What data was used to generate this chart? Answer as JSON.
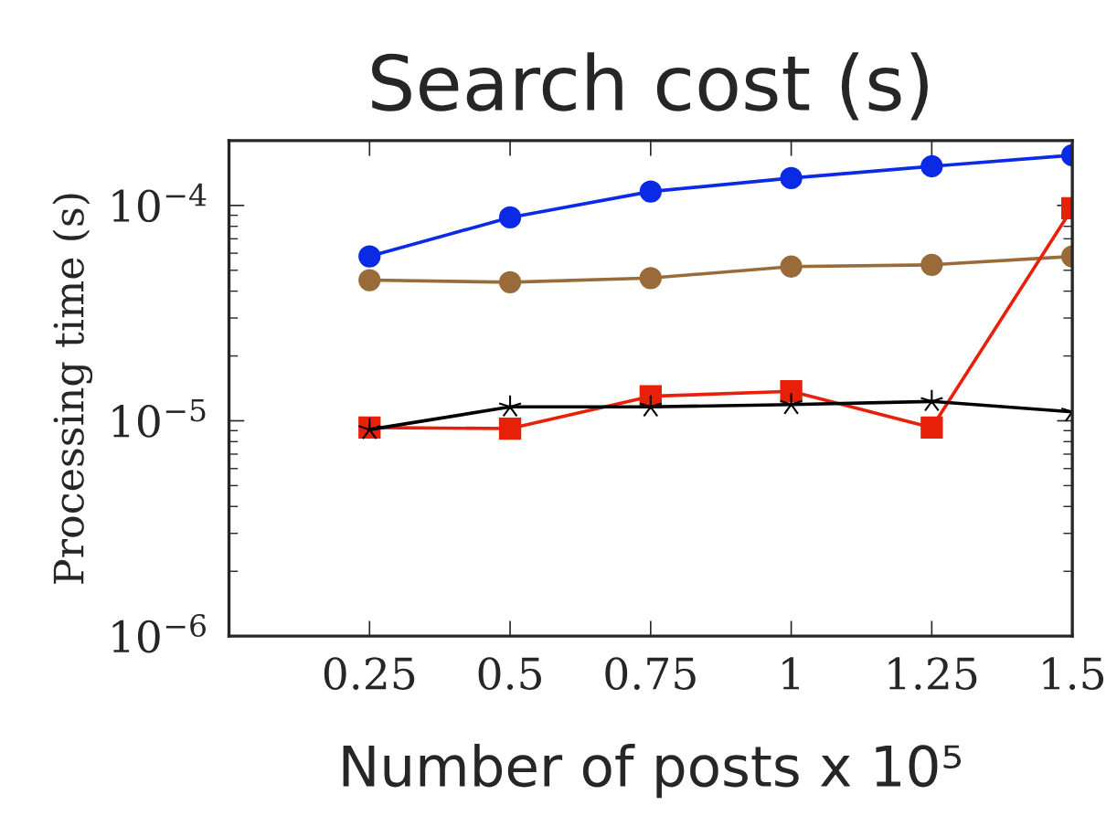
{
  "chart_data": {
    "type": "line",
    "title": "Search cost (s)",
    "xlabel": "Number of posts x 10⁵",
    "ylabel": "Processing time (s)",
    "x": [
      0.25,
      0.5,
      0.75,
      1,
      1.25,
      1.5
    ],
    "series": [
      {
        "color": "#0a2ae6",
        "marker": "circle",
        "values": [
          5.8e-05,
          8.8e-05,
          0.000116,
          0.000134,
          0.000152,
          0.000171
        ]
      },
      {
        "color": "#9a6b3a",
        "marker": "circle",
        "values": [
          4.5e-05,
          4.4e-05,
          4.6e-05,
          5.2e-05,
          5.3e-05,
          5.8e-05
        ]
      },
      {
        "color": "#e8200a",
        "marker": "square",
        "values": [
          9.3e-06,
          9.2e-06,
          1.3e-05,
          1.37e-05,
          9.3e-06,
          9.7e-05
        ]
      },
      {
        "color": "#000000",
        "marker": "star",
        "values": [
          9.1e-06,
          1.16e-05,
          1.16e-05,
          1.19e-05,
          1.23e-05,
          1.1e-05
        ]
      }
    ],
    "log": "y",
    "xlim": [
      0,
      1.5
    ],
    "ylim": [
      1e-06,
      0.0002
    ],
    "xticks": [
      0.25,
      0.5,
      0.75,
      1,
      1.25,
      1.5
    ],
    "yticks": [
      {
        "value": 1e-06,
        "label": "10$^{−6}$"
      },
      {
        "value": 1e-05,
        "label": "10$^{−5}$"
      },
      {
        "value": 0.0001,
        "label": "10$^{−4}$"
      }
    ],
    "grid": false,
    "line_style": "solid"
  }
}
